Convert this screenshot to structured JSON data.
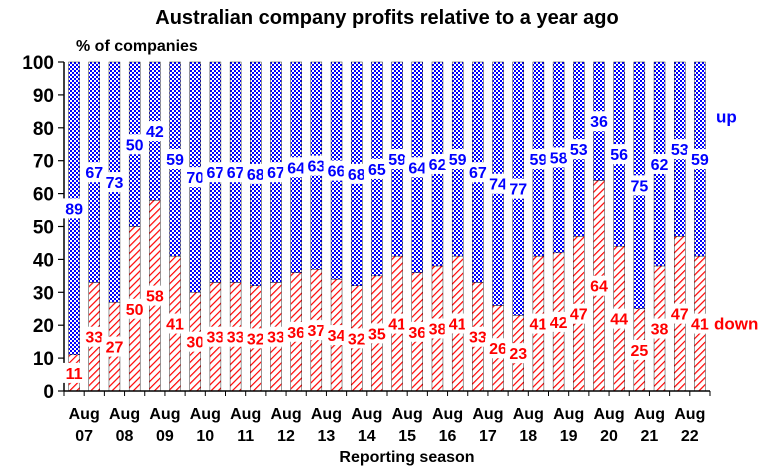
{
  "chart_data": {
    "type": "bar",
    "stacked": true,
    "title": "Australian company profits relative to a year ago",
    "ylabel": "% of companies",
    "xlabel": "Reporting season",
    "ylim": [
      0,
      100
    ],
    "yticks": [
      0,
      10,
      20,
      30,
      40,
      50,
      60,
      70,
      80,
      90,
      100
    ],
    "xtick_labels": [
      {
        "top": "Aug",
        "bottom": "07"
      },
      {
        "top": "Aug",
        "bottom": "08"
      },
      {
        "top": "Aug",
        "bottom": "09"
      },
      {
        "top": "Aug",
        "bottom": "10"
      },
      {
        "top": "Aug",
        "bottom": "11"
      },
      {
        "top": "Aug",
        "bottom": "12"
      },
      {
        "top": "Aug",
        "bottom": "13"
      },
      {
        "top": "Aug",
        "bottom": "14"
      },
      {
        "top": "Aug",
        "bottom": "15"
      },
      {
        "top": "Aug",
        "bottom": "16"
      },
      {
        "top": "Aug",
        "bottom": "17"
      },
      {
        "top": "Aug",
        "bottom": "18"
      },
      {
        "top": "Aug",
        "bottom": "19"
      },
      {
        "top": "Aug",
        "bottom": "20"
      },
      {
        "top": "Aug",
        "bottom": "21"
      },
      {
        "top": "Aug",
        "bottom": "22"
      }
    ],
    "series": [
      {
        "name": "down",
        "color": "#ff0000",
        "values": [
          11,
          33,
          27,
          50,
          58,
          41,
          30,
          33,
          33,
          32,
          33,
          36,
          37,
          34,
          32,
          35,
          41,
          36,
          38,
          41,
          33,
          26,
          23,
          41,
          42,
          47,
          64,
          44,
          25,
          38,
          47,
          41
        ]
      },
      {
        "name": "up",
        "color": "#0000ff",
        "values": [
          89,
          67,
          73,
          50,
          42,
          59,
          70,
          67,
          67,
          68,
          67,
          64,
          63,
          66,
          68,
          65,
          59,
          64,
          62,
          59,
          67,
          74,
          77,
          59,
          58,
          53,
          36,
          56,
          75,
          62,
          53,
          59
        ]
      }
    ]
  }
}
